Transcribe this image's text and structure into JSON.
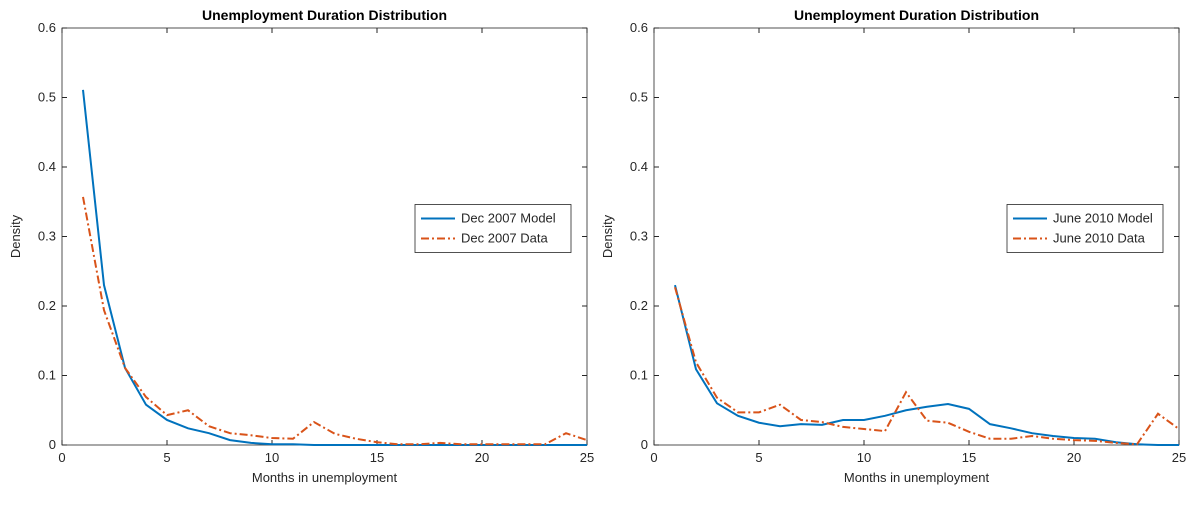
{
  "chart_data": [
    {
      "type": "line",
      "title": "Unemployment Duration Distribution",
      "x_label": "Months in unemployment",
      "y_label": "Density",
      "x": [
        1,
        2,
        3,
        4,
        5,
        6,
        7,
        8,
        9,
        10,
        11,
        12,
        13,
        14,
        15,
        16,
        17,
        18,
        19,
        20,
        21,
        22,
        23,
        24,
        25
      ],
      "series": [
        {
          "name": "Dec 2007 Model",
          "color": "#0072BD",
          "dash": "solid",
          "values": [
            0.511,
            0.23,
            0.111,
            0.058,
            0.036,
            0.024,
            0.017,
            0.007,
            0.003,
            0.001,
            0.001,
            0,
            0,
            0,
            0,
            0,
            0,
            0,
            0,
            0,
            0,
            0,
            0,
            0,
            0
          ]
        },
        {
          "name": "Dec 2007 Data",
          "color": "#D95319",
          "dash": "dashdot",
          "values": [
            0.357,
            0.194,
            0.111,
            0.069,
            0.043,
            0.05,
            0.027,
            0.017,
            0.014,
            0.01,
            0.009,
            0.033,
            0.016,
            0.009,
            0.004,
            0.001,
            0.001,
            0.003,
            0.001,
            0.001,
            0.001,
            0.001,
            0.001,
            0.017,
            0.007
          ]
        }
      ],
      "xlim": [
        0,
        25
      ],
      "ylim": [
        0,
        0.6
      ],
      "xticks": [
        0,
        5,
        10,
        15,
        20,
        25
      ],
      "yticks": [
        0,
        0.1,
        0.2,
        0.3,
        0.4,
        0.5,
        0.6
      ],
      "legend": "right"
    },
    {
      "type": "line",
      "title": "Unemployment Duration Distribution",
      "x_label": "Months in unemployment",
      "y_label": "Density",
      "x": [
        1,
        2,
        3,
        4,
        5,
        6,
        7,
        8,
        9,
        10,
        11,
        12,
        13,
        14,
        15,
        16,
        17,
        18,
        19,
        20,
        21,
        22,
        23,
        24,
        25
      ],
      "series": [
        {
          "name": "June 2010 Model",
          "color": "#0072BD",
          "dash": "solid",
          "values": [
            0.23,
            0.109,
            0.06,
            0.042,
            0.032,
            0.027,
            0.03,
            0.029,
            0.036,
            0.036,
            0.042,
            0.05,
            0.055,
            0.059,
            0.052,
            0.03,
            0.024,
            0.017,
            0.013,
            0.01,
            0.009,
            0.004,
            0.001,
            0,
            0
          ]
        },
        {
          "name": "June 2010 Data",
          "color": "#D95319",
          "dash": "dashdot",
          "values": [
            0.227,
            0.119,
            0.068,
            0.047,
            0.047,
            0.058,
            0.036,
            0.033,
            0.026,
            0.023,
            0.02,
            0.076,
            0.035,
            0.032,
            0.019,
            0.009,
            0.009,
            0.013,
            0.009,
            0.007,
            0.006,
            0.003,
            0.001,
            0.045,
            0.023
          ]
        }
      ],
      "xlim": [
        0,
        25
      ],
      "ylim": [
        0,
        0.6
      ],
      "xticks": [
        0,
        5,
        10,
        15,
        20,
        25
      ],
      "yticks": [
        0,
        0.1,
        0.2,
        0.3,
        0.4,
        0.5,
        0.6
      ],
      "legend": "right"
    }
  ]
}
